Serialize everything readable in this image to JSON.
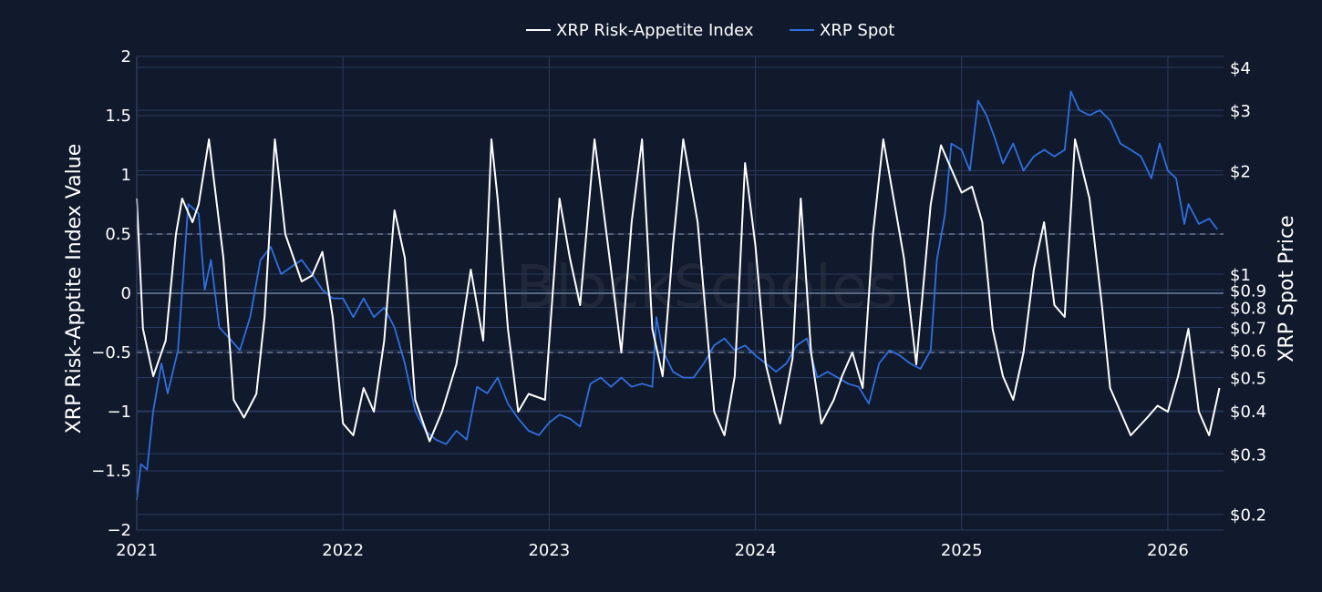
{
  "chart_data": {
    "type": "line",
    "watermark": "BlockScholes",
    "legend": {
      "placement": "top-center"
    },
    "ylabel_left": "XRP Risk-Apptite Index Value",
    "ylabel_right": "XRP Spot Price",
    "x_ticks": [
      "2021",
      "2022",
      "2023",
      "2024",
      "2025",
      "2026"
    ],
    "x_range": [
      2021.0,
      2026.27
    ],
    "y_left": {
      "range": [
        -2,
        2
      ],
      "ticks": [
        -2,
        -1.5,
        -1,
        -0.5,
        0,
        0.5,
        1,
        1.5,
        2
      ],
      "tick_labels": [
        "−2",
        "−1.5",
        "−1",
        "−0.5",
        "0",
        "0.5",
        "1",
        "1.5",
        "2"
      ]
    },
    "y_right": {
      "scale": "log",
      "range": [
        0.18,
        4.3
      ],
      "ticks": [
        0.2,
        0.3,
        0.4,
        0.5,
        0.6,
        0.7,
        0.8,
        0.9,
        1,
        2,
        3,
        4
      ],
      "tick_labels": [
        "$0.2",
        "$0.3",
        "$0.4",
        "$0.5",
        "$0.6",
        "$0.7",
        "$0.8",
        "$0.9",
        "$1",
        "$2",
        "$3",
        "$4"
      ]
    },
    "reference_lines": [
      0.5,
      0,
      -0.5
    ],
    "series": [
      {
        "name": "XRP Risk-Appetite Index",
        "axis": "left",
        "color": "#ffffff",
        "x": [
          2021.0,
          2021.03,
          2021.08,
          2021.14,
          2021.19,
          2021.22,
          2021.27,
          2021.3,
          2021.35,
          2021.42,
          2021.47,
          2021.52,
          2021.58,
          2021.62,
          2021.67,
          2021.72,
          2021.8,
          2021.85,
          2021.9,
          2021.95,
          2022.0,
          2022.05,
          2022.1,
          2022.15,
          2022.2,
          2022.25,
          2022.3,
          2022.35,
          2022.42,
          2022.48,
          2022.55,
          2022.62,
          2022.68,
          2022.72,
          2022.75,
          2022.8,
          2022.85,
          2022.9,
          2022.98,
          2023.05,
          2023.1,
          2023.15,
          2023.22,
          2023.3,
          2023.35,
          2023.4,
          2023.45,
          2023.5,
          2023.55,
          2023.6,
          2023.65,
          2023.72,
          2023.8,
          2023.85,
          2023.9,
          2023.95,
          2024.0,
          2024.05,
          2024.12,
          2024.18,
          2024.22,
          2024.27,
          2024.32,
          2024.38,
          2024.42,
          2024.47,
          2024.52,
          2024.57,
          2024.62,
          2024.68,
          2024.72,
          2024.78,
          2024.85,
          2024.9,
          2024.95,
          2025.0,
          2025.05,
          2025.1,
          2025.15,
          2025.2,
          2025.25,
          2025.3,
          2025.35,
          2025.4,
          2025.45,
          2025.5,
          2025.55,
          2025.62,
          2025.68,
          2025.72,
          2025.77,
          2025.82,
          2025.9,
          2025.95,
          2026.0,
          2026.05,
          2026.1,
          2026.15,
          2026.2,
          2026.25
        ],
        "y": [
          0.8,
          -0.3,
          -0.7,
          -0.4,
          0.5,
          0.8,
          0.6,
          0.75,
          1.3,
          0.3,
          -0.9,
          -1.05,
          -0.85,
          -0.2,
          1.3,
          0.5,
          0.1,
          0.15,
          0.35,
          -0.2,
          -1.1,
          -1.2,
          -0.8,
          -1.0,
          -0.4,
          0.7,
          0.3,
          -0.9,
          -1.25,
          -1.0,
          -0.6,
          0.2,
          -0.4,
          1.3,
          0.8,
          -0.3,
          -1.0,
          -0.85,
          -0.9,
          0.8,
          0.3,
          -0.1,
          1.3,
          0.2,
          -0.5,
          0.6,
          1.3,
          -0.3,
          -0.7,
          0.4,
          1.3,
          0.6,
          -1.0,
          -1.2,
          -0.7,
          1.1,
          0.4,
          -0.6,
          -1.1,
          -0.55,
          0.8,
          -0.5,
          -1.1,
          -0.9,
          -0.7,
          -0.5,
          -0.8,
          0.5,
          1.3,
          0.7,
          0.3,
          -0.6,
          0.75,
          1.25,
          1.05,
          0.85,
          0.9,
          0.6,
          -0.3,
          -0.7,
          -0.9,
          -0.5,
          0.2,
          0.6,
          -0.1,
          -0.2,
          1.3,
          0.8,
          -0.1,
          -0.8,
          -1.0,
          -1.2,
          -1.05,
          -0.95,
          -1.0,
          -0.7,
          -0.3,
          -1.0,
          -1.2,
          -0.8
        ]
      },
      {
        "name": "XRP Spot",
        "axis": "right",
        "color": "#2f6fe0",
        "x": [
          2021.0,
          2021.02,
          2021.05,
          2021.08,
          2021.12,
          2021.15,
          2021.2,
          2021.25,
          2021.3,
          2021.33,
          2021.36,
          2021.4,
          2021.45,
          2021.5,
          2021.55,
          2021.6,
          2021.65,
          2021.7,
          2021.75,
          2021.8,
          2021.85,
          2021.9,
          2021.95,
          2022.0,
          2022.05,
          2022.1,
          2022.15,
          2022.2,
          2022.25,
          2022.3,
          2022.35,
          2022.4,
          2022.45,
          2022.5,
          2022.55,
          2022.6,
          2022.65,
          2022.7,
          2022.75,
          2022.8,
          2022.85,
          2022.9,
          2022.95,
          2023.0,
          2023.05,
          2023.1,
          2023.15,
          2023.2,
          2023.25,
          2023.3,
          2023.35,
          2023.4,
          2023.45,
          2023.5,
          2023.52,
          2023.55,
          2023.6,
          2023.65,
          2023.7,
          2023.75,
          2023.8,
          2023.85,
          2023.9,
          2023.95,
          2024.0,
          2024.05,
          2024.1,
          2024.15,
          2024.2,
          2024.25,
          2024.3,
          2024.35,
          2024.4,
          2024.45,
          2024.5,
          2024.55,
          2024.6,
          2024.65,
          2024.7,
          2024.75,
          2024.8,
          2024.85,
          2024.88,
          2024.92,
          2024.95,
          2025.0,
          2025.04,
          2025.08,
          2025.12,
          2025.16,
          2025.2,
          2025.25,
          2025.3,
          2025.35,
          2025.4,
          2025.45,
          2025.5,
          2025.53,
          2025.57,
          2025.62,
          2025.67,
          2025.72,
          2025.77,
          2025.82,
          2025.87,
          2025.92,
          2025.96,
          2026.0,
          2026.04,
          2026.08,
          2026.1,
          2026.15,
          2026.2,
          2026.24
        ],
        "y": [
          0.22,
          0.28,
          0.27,
          0.4,
          0.55,
          0.45,
          0.6,
          1.6,
          1.5,
          0.9,
          1.1,
          0.7,
          0.65,
          0.6,
          0.75,
          1.1,
          1.2,
          1.0,
          1.05,
          1.1,
          1.0,
          0.9,
          0.85,
          0.85,
          0.75,
          0.85,
          0.75,
          0.8,
          0.7,
          0.55,
          0.4,
          0.35,
          0.33,
          0.32,
          0.35,
          0.33,
          0.47,
          0.45,
          0.5,
          0.42,
          0.38,
          0.35,
          0.34,
          0.37,
          0.39,
          0.38,
          0.36,
          0.48,
          0.5,
          0.47,
          0.5,
          0.47,
          0.48,
          0.47,
          0.75,
          0.6,
          0.52,
          0.5,
          0.5,
          0.55,
          0.62,
          0.65,
          0.6,
          0.62,
          0.58,
          0.55,
          0.52,
          0.55,
          0.62,
          0.65,
          0.5,
          0.52,
          0.5,
          0.48,
          0.47,
          0.42,
          0.55,
          0.6,
          0.58,
          0.55,
          0.53,
          0.6,
          1.1,
          1.5,
          2.4,
          2.3,
          2.0,
          3.2,
          2.9,
          2.5,
          2.1,
          2.4,
          2.0,
          2.2,
          2.3,
          2.2,
          2.3,
          3.4,
          3.0,
          2.9,
          3.0,
          2.8,
          2.4,
          2.3,
          2.2,
          1.9,
          2.4,
          2.0,
          1.9,
          1.4,
          1.6,
          1.4,
          1.45,
          1.35
        ]
      }
    ]
  }
}
